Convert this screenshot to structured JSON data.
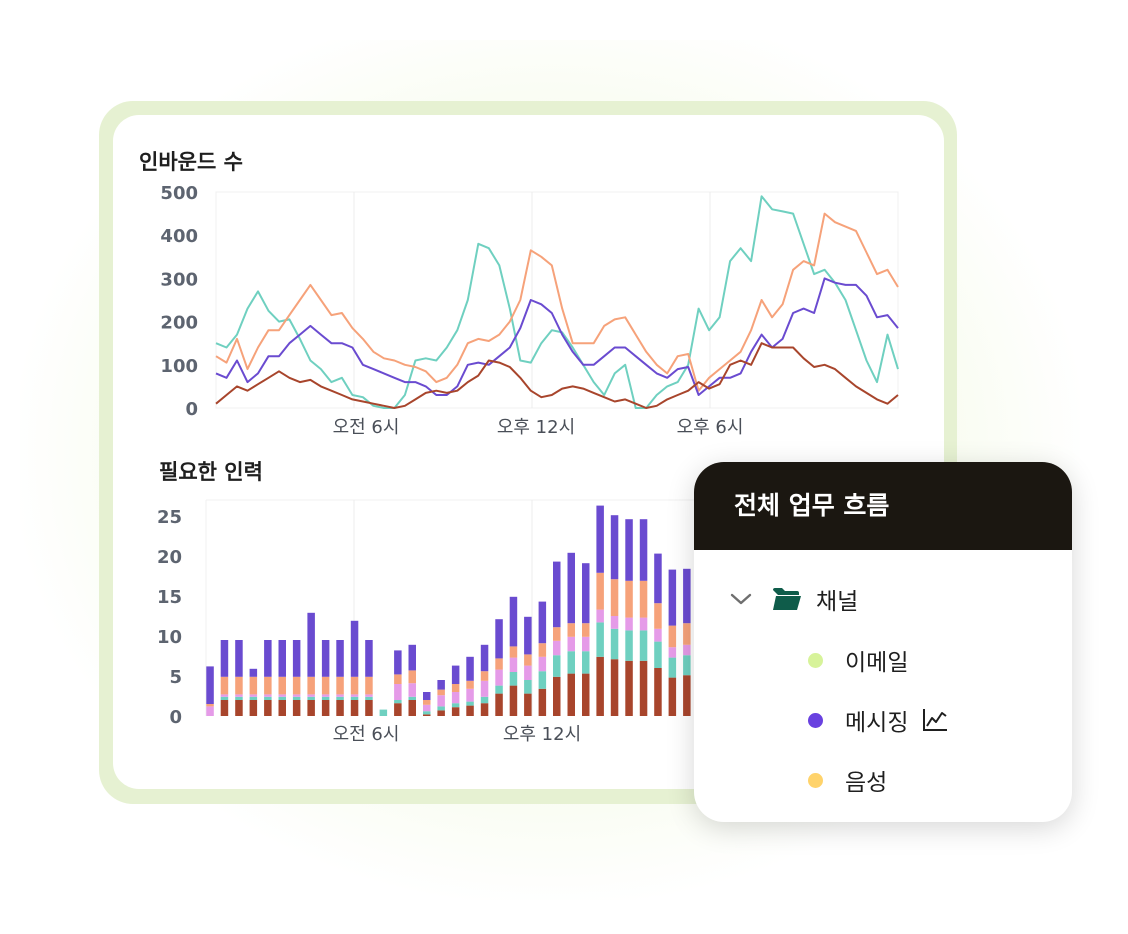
{
  "inbound": {
    "title": "인바운드 수",
    "y_ticks": [
      "500",
      "400",
      "300",
      "200",
      "100",
      "0"
    ],
    "x_ticks": [
      "오전 6시",
      "오후 12시",
      "오후 6시"
    ]
  },
  "staff": {
    "title": "필요한 인력",
    "y_ticks": [
      "25",
      "20",
      "15",
      "10",
      "5",
      "0"
    ],
    "x_ticks": [
      "오전 6시",
      "오후 12시"
    ]
  },
  "panel": {
    "title": "전체 업무 흐름",
    "folder_label": "채널",
    "items": [
      {
        "label": "이메일",
        "color": "#d7f39a"
      },
      {
        "label": "메시징",
        "color": "#6941e0",
        "icon": "line-chart-icon"
      },
      {
        "label": "음성",
        "color": "#ffd36b"
      }
    ]
  },
  "colors": {
    "teal": "#6fd0c0",
    "orange": "#f6a27a",
    "purple": "#6a4bd0",
    "brown": "#a8452c",
    "pink": "#e59be8",
    "folder": "#0f5c4a"
  },
  "chart_data": [
    {
      "type": "line",
      "title": "인바운드 수",
      "ylim": [
        0,
        500
      ],
      "x_ticks": [
        "오전 6시",
        "오후 12시",
        "오후 6시"
      ],
      "series": [
        {
          "color": "#6fd0c0",
          "values": [
            150,
            140,
            170,
            230,
            270,
            225,
            200,
            205,
            160,
            110,
            90,
            60,
            70,
            30,
            25,
            5,
            0,
            0,
            30,
            110,
            115,
            110,
            140,
            180,
            250,
            380,
            370,
            330,
            230,
            110,
            105,
            150,
            180,
            175,
            140,
            100,
            60,
            30,
            80,
            100,
            0,
            0,
            30,
            50,
            60,
            100,
            230,
            180,
            210,
            340,
            370,
            340,
            490,
            460,
            455,
            450,
            380,
            310,
            320,
            290,
            250,
            180,
            110,
            60,
            170,
            90
          ],
          "x_labels": []
        },
        {
          "color": "#f6a27a",
          "values": [
            120,
            105,
            160,
            90,
            140,
            180,
            180,
            215,
            250,
            285,
            250,
            215,
            220,
            185,
            160,
            130,
            115,
            110,
            100,
            95,
            85,
            60,
            70,
            100,
            150,
            160,
            155,
            170,
            200,
            250,
            365,
            350,
            330,
            230,
            150,
            150,
            150,
            190,
            205,
            210,
            170,
            130,
            100,
            80,
            120,
            125,
            40,
            70,
            90,
            110,
            130,
            180,
            250,
            210,
            240,
            320,
            340,
            330,
            450,
            430,
            420,
            410,
            360,
            310,
            320,
            280
          ],
          "x_labels": []
        },
        {
          "color": "#6a4bd0",
          "values": [
            80,
            70,
            110,
            60,
            80,
            120,
            120,
            150,
            170,
            190,
            170,
            150,
            150,
            140,
            100,
            90,
            80,
            70,
            60,
            60,
            50,
            30,
            30,
            50,
            100,
            105,
            100,
            120,
            140,
            185,
            250,
            240,
            220,
            170,
            130,
            100,
            100,
            120,
            140,
            140,
            120,
            100,
            80,
            70,
            90,
            95,
            30,
            50,
            70,
            70,
            80,
            130,
            170,
            140,
            160,
            220,
            230,
            220,
            300,
            290,
            285,
            285,
            260,
            210,
            215,
            185
          ],
          "x_labels": []
        },
        {
          "color": "#a8452c",
          "values": [
            10,
            30,
            50,
            40,
            55,
            70,
            85,
            70,
            60,
            65,
            50,
            40,
            30,
            20,
            15,
            10,
            5,
            0,
            5,
            20,
            35,
            40,
            35,
            40,
            60,
            75,
            110,
            105,
            95,
            70,
            40,
            25,
            30,
            45,
            50,
            45,
            35,
            25,
            15,
            20,
            10,
            0,
            5,
            20,
            30,
            40,
            60,
            45,
            55,
            100,
            110,
            100,
            150,
            140,
            140,
            140,
            115,
            95,
            100,
            90,
            70,
            50,
            35,
            20,
            10,
            30
          ],
          "x_labels": []
        }
      ]
    },
    {
      "type": "bar",
      "title": "필요한 인력",
      "stacked": true,
      "ylim": [
        0,
        27
      ],
      "x_ticks": [
        "오전 6시",
        "오후 12시"
      ],
      "series_colors": [
        "#a8452c",
        "#6fd0c0",
        "#e59be8",
        "#f6a27a",
        "#6a4bd0"
      ],
      "stacks": [
        [
          0,
          0,
          1.2,
          0.3,
          4.7
        ],
        [
          2,
          0.4,
          0.3,
          2.2,
          4.6
        ],
        [
          2,
          0.4,
          0.3,
          2.2,
          4.6
        ],
        [
          2,
          0.4,
          0.3,
          2.2,
          1
        ],
        [
          2,
          0.4,
          0.3,
          2.2,
          4.6
        ],
        [
          2,
          0.4,
          0.3,
          2.2,
          4.6
        ],
        [
          2,
          0.4,
          0.3,
          2.2,
          4.6
        ],
        [
          2,
          0.4,
          0.3,
          2.2,
          8
        ],
        [
          2,
          0.4,
          0.3,
          2.2,
          4.6
        ],
        [
          2,
          0.4,
          0.3,
          2.2,
          4.6
        ],
        [
          2,
          0.4,
          0.3,
          2.2,
          7
        ],
        [
          2,
          0.4,
          0.3,
          2.2,
          4.6
        ],
        [
          0,
          0.8,
          0,
          0,
          0
        ],
        [
          1.6,
          0.4,
          2,
          1.2,
          3
        ],
        [
          2,
          0.4,
          1.7,
          1.6,
          3.2
        ],
        [
          0.2,
          0.4,
          0.8,
          0.6,
          1
        ],
        [
          0.7,
          0.5,
          1.4,
          0.7,
          1.2
        ],
        [
          1.1,
          0.5,
          1.4,
          1,
          2.3
        ],
        [
          1.3,
          0.5,
          1.6,
          1,
          3
        ],
        [
          1.6,
          0.8,
          2,
          1.2,
          3.3
        ],
        [
          2.8,
          1,
          2,
          1.4,
          4.9
        ],
        [
          3.8,
          1.7,
          1.8,
          1.4,
          6.2
        ],
        [
          2.8,
          1.7,
          1.8,
          1.4,
          4.7
        ],
        [
          3.4,
          2.2,
          1.8,
          1.7,
          5.2
        ],
        [
          4.9,
          2.7,
          1.8,
          1.7,
          8.2
        ],
        [
          5.3,
          2.8,
          1.8,
          1.7,
          8.8
        ],
        [
          5.3,
          2.8,
          1.8,
          1.7,
          7.5
        ],
        [
          7.4,
          4.3,
          1.6,
          4.6,
          8.4
        ],
        [
          7.1,
          3.8,
          1.6,
          4.6,
          8
        ],
        [
          6.9,
          3.8,
          1.6,
          4.6,
          7.7
        ],
        [
          6.9,
          3.8,
          1.6,
          4.6,
          7.7
        ],
        [
          6,
          3.3,
          1.6,
          3.2,
          6.2
        ],
        [
          4.8,
          2.5,
          1.3,
          2.7,
          7
        ],
        [
          5.1,
          2.5,
          1.3,
          2.7,
          6.8
        ]
      ]
    }
  ]
}
